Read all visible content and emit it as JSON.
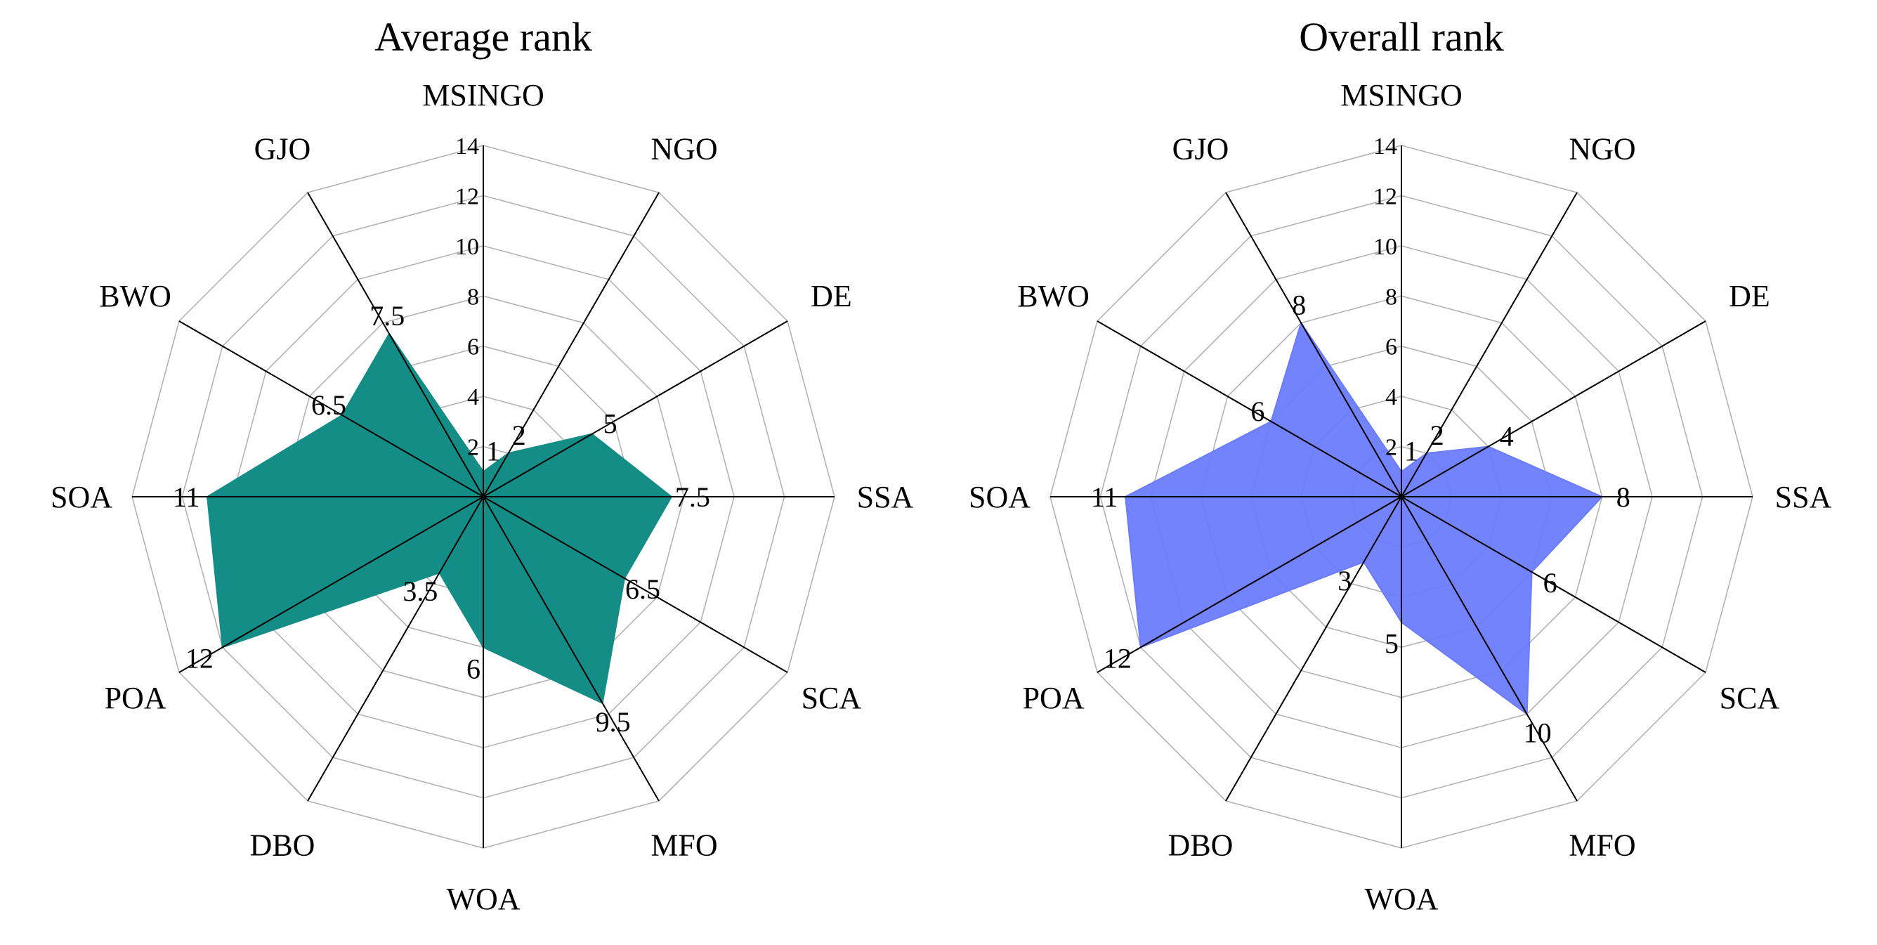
{
  "chart_data": [
    {
      "type": "radar",
      "title": "Average rank",
      "categories": [
        "MSINGO",
        "NGO",
        "DE",
        "SSA",
        "SCA",
        "MFO",
        "WOA",
        "DBO",
        "POA",
        "SOA",
        "BWO",
        "GJO"
      ],
      "values": [
        1,
        2,
        5,
        7.5,
        6.5,
        9.5,
        6,
        3.5,
        12,
        11,
        6.5,
        7.5
      ],
      "value_labels": [
        "1",
        "2",
        "5",
        "7.5",
        "6.5",
        "9.5",
        "6",
        "3.5",
        "12",
        "11",
        "6.5",
        "7.5"
      ],
      "radial_range": [
        0,
        14
      ],
      "radial_ticks": [
        "2",
        "4",
        "6",
        "8",
        "10",
        "12",
        "14"
      ],
      "fill_color": "#138d85"
    },
    {
      "type": "radar",
      "title": "Overall rank",
      "categories": [
        "MSINGO",
        "NGO",
        "DE",
        "SSA",
        "SCA",
        "MFO",
        "WOA",
        "DBO",
        "POA",
        "SOA",
        "BWO",
        "GJO"
      ],
      "values": [
        1,
        2,
        4,
        8,
        6,
        10,
        5,
        3,
        12,
        11,
        6,
        8
      ],
      "value_labels": [
        "1",
        "2",
        "4",
        "8",
        "6",
        "10",
        "5",
        "3",
        "12",
        "11",
        "6",
        "8"
      ],
      "radial_range": [
        0,
        14
      ],
      "radial_ticks": [
        "2",
        "4",
        "6",
        "8",
        "10",
        "12",
        "14"
      ],
      "fill_color": "#6a7cfc"
    }
  ]
}
